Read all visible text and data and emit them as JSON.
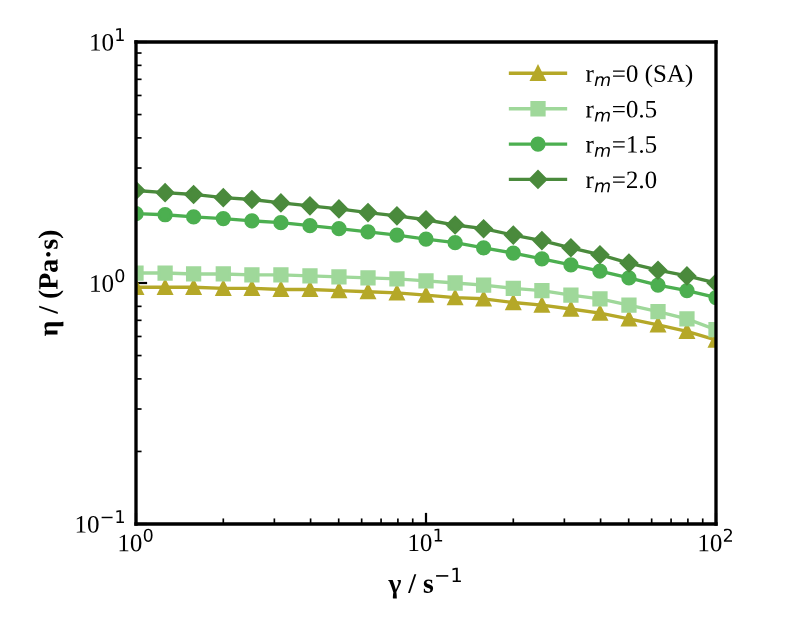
{
  "chart_data": {
    "type": "line",
    "xlabel": "γ / s$^{−1}$",
    "ylabel": "η / (Pa·s)",
    "log": "xy",
    "x": [
      1,
      1.26,
      1.58,
      2,
      2.51,
      3.16,
      3.98,
      5.01,
      6.31,
      7.94,
      10,
      12.6,
      15.8,
      20,
      25.1,
      31.6,
      39.8,
      50.1,
      63.1,
      79.4,
      100
    ],
    "xlim": [
      1,
      100
    ],
    "ylim": [
      0.1,
      10
    ],
    "xticks": [
      {
        "value": 1,
        "label": "10$^{0}$"
      },
      {
        "value": 10,
        "label": "10$^{1}$"
      },
      {
        "value": 100,
        "label": "10$^{2}$"
      }
    ],
    "yticks": [
      {
        "value": 0.1,
        "label": "10$^{−1}$"
      },
      {
        "value": 1,
        "label": "10$^{0}$"
      },
      {
        "value": 10,
        "label": "10$^{1}$"
      }
    ],
    "grid": false,
    "legend": "top right",
    "line_style": "solid",
    "series": [
      {
        "name": "r$_{m}$=0 (SA)",
        "color": "#b5a828",
        "marker": "triangle",
        "values": [
          0.96,
          0.96,
          0.96,
          0.95,
          0.95,
          0.94,
          0.94,
          0.93,
          0.92,
          0.91,
          0.89,
          0.87,
          0.86,
          0.83,
          0.81,
          0.78,
          0.75,
          0.71,
          0.67,
          0.63,
          0.58
        ]
      },
      {
        "name": "r$_{m}$=0.5",
        "color": "#9fd89a",
        "marker": "square",
        "values": [
          1.1,
          1.1,
          1.09,
          1.09,
          1.08,
          1.08,
          1.07,
          1.06,
          1.05,
          1.04,
          1.02,
          1.0,
          0.98,
          0.95,
          0.93,
          0.89,
          0.86,
          0.81,
          0.76,
          0.71,
          0.64
        ]
      },
      {
        "name": "r$_{m}$=1.5",
        "color": "#4caf50",
        "marker": "circle",
        "values": [
          1.94,
          1.92,
          1.88,
          1.85,
          1.81,
          1.78,
          1.73,
          1.68,
          1.63,
          1.58,
          1.52,
          1.47,
          1.4,
          1.33,
          1.26,
          1.19,
          1.12,
          1.05,
          0.98,
          0.93,
          0.87
        ]
      },
      {
        "name": "r$_{m}$=2.0",
        "color": "#4a8a3c",
        "marker": "diamond",
        "values": [
          2.42,
          2.37,
          2.33,
          2.26,
          2.22,
          2.15,
          2.09,
          2.03,
          1.96,
          1.9,
          1.83,
          1.74,
          1.68,
          1.58,
          1.5,
          1.4,
          1.31,
          1.21,
          1.13,
          1.07,
          1.0
        ]
      }
    ]
  }
}
